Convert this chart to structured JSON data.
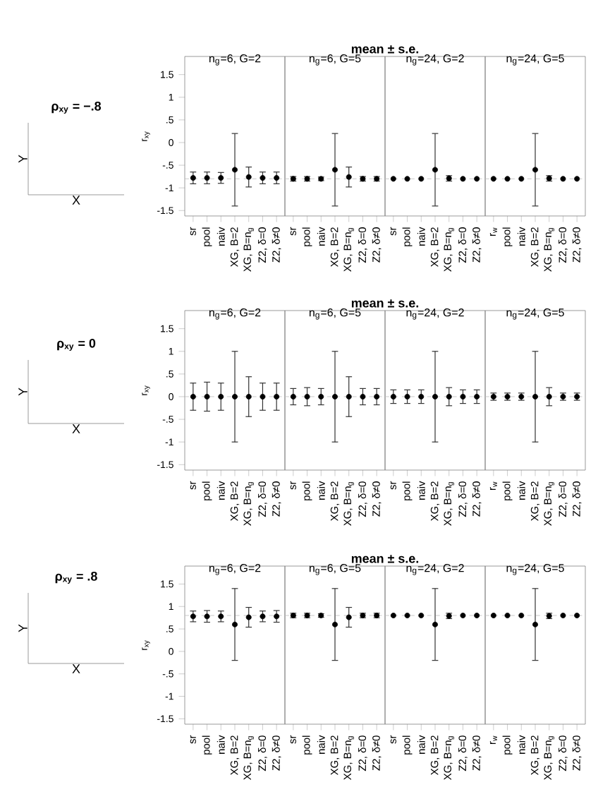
{
  "chart_data": [
    {
      "type": "other",
      "title": "ρ$_{xy}$ = −.8",
      "xlabel": "X",
      "ylabel": "Y"
    },
    {
      "type": "scatter",
      "subtitle": "n$_{g}$=6, G=2",
      "ylabel": "r$_{xy}$",
      "color": "#000000",
      "categories": [
        "sr",
        "pool",
        "naiv",
        "XG, B=2",
        "XG, B=n$_{g}$",
        "Z2, δ=0",
        "Z2, δ≠0"
      ],
      "values": [
        -0.78,
        -0.78,
        -0.78,
        -0.6,
        -0.76,
        -0.78,
        -0.78
      ],
      "errors": [
        0.13,
        0.13,
        0.12,
        0.8,
        0.22,
        0.13,
        0.13
      ],
      "ylim": [
        -1.62,
        1.9
      ],
      "yticks": [
        {
          "value": -1.5,
          "label": "-1.5"
        },
        {
          "value": -1,
          "label": "-1"
        },
        {
          "value": -0.5,
          "label": "-.5"
        },
        0,
        {
          "value": 0.5,
          "label": ".5"
        },
        1,
        1.5
      ],
      "ref_lines": [
        {
          "axis": "y",
          "value": -0.8,
          "color": "#bbbbbb",
          "line_style": "dashed"
        }
      ]
    },
    {
      "type": "scatter",
      "title": "mean ± s.e.",
      "subtitle": "n$_{g}$=6, G=5",
      "color": "#000000",
      "categories": [
        "sr",
        "pool",
        "naiv",
        "XG, B=2",
        "XG, B=n$_{g}$",
        "Z2, δ=0",
        "Z2, δ≠0"
      ],
      "values": [
        -0.8,
        -0.8,
        -0.8,
        -0.6,
        -0.76,
        -0.8,
        -0.8
      ],
      "errors": [
        0.05,
        0.05,
        0.04,
        0.8,
        0.22,
        0.05,
        0.05
      ],
      "ylim": [
        -1.62,
        1.9
      ],
      "tick_labels": "x",
      "ref_lines": [
        {
          "axis": "y",
          "value": -0.8,
          "color": "#bbbbbb",
          "line_style": "dashed"
        }
      ]
    },
    {
      "type": "scatter",
      "subtitle": "n$_{g}$=24, G=2",
      "color": "#000000",
      "categories": [
        "sr",
        "pool",
        "naiv",
        "XG, B=2",
        "XG, B=n$_{g}$",
        "Z2, δ=0",
        "Z2, δ≠0"
      ],
      "values": [
        -0.8,
        -0.8,
        -0.8,
        -0.6,
        -0.79,
        -0.8,
        -0.8
      ],
      "errors": [
        null,
        null,
        null,
        0.8,
        0.06,
        null,
        null
      ],
      "ylim": [
        -1.62,
        1.9
      ],
      "tick_labels": "x",
      "ref_lines": [
        {
          "axis": "y",
          "value": -0.8,
          "color": "#bbbbbb",
          "line_style": "dashed"
        }
      ]
    },
    {
      "type": "scatter",
      "subtitle": "n$_{g}$=24, G=5",
      "color": "#000000",
      "categories": [
        "r$_{w}$",
        "pool",
        "naiv",
        "XG, B=2",
        "XG, B=n$_{g}$",
        "Z2, δ=0",
        "Z2, δ≠0"
      ],
      "values": [
        -0.8,
        -0.8,
        -0.8,
        -0.6,
        -0.79,
        -0.8,
        -0.8
      ],
      "errors": [
        null,
        null,
        null,
        0.8,
        0.06,
        null,
        null
      ],
      "ylim": [
        -1.62,
        1.9
      ],
      "tick_labels": "x",
      "ref_lines": [
        {
          "axis": "y",
          "value": -0.8,
          "color": "#bbbbbb",
          "line_style": "dashed"
        }
      ]
    },
    {
      "type": "other",
      "title": "ρ$_{xy}$ = 0",
      "xlabel": "X",
      "ylabel": "Y"
    },
    {
      "type": "scatter",
      "subtitle": "n$_{g}$=6, G=2",
      "ylabel": "r$_{xy}$",
      "color": "#000000",
      "categories": [
        "sr",
        "pool",
        "naiv",
        "XG, B=2",
        "XG, B=n$_{g}$",
        "Z2, δ=0",
        "Z2, δ≠0"
      ],
      "values": [
        0,
        0,
        0,
        0,
        0,
        0,
        0
      ],
      "errors": [
        0.3,
        0.32,
        0.3,
        1,
        0.44,
        0.3,
        0.3
      ],
      "ylim": [
        -1.62,
        1.9
      ],
      "yticks": [
        {
          "value": -1.5,
          "label": "-1.5"
        },
        {
          "value": -1,
          "label": "-1"
        },
        {
          "value": -0.5,
          "label": "-.5"
        },
        0,
        {
          "value": 0.5,
          "label": ".5"
        },
        1,
        1.5
      ],
      "ref_lines": [
        {
          "axis": "y",
          "value": 0,
          "color": "#bbbbbb",
          "line_style": "dashed"
        }
      ]
    },
    {
      "type": "scatter",
      "title": "mean ± s.e.",
      "subtitle": "n$_{g}$=6, G=5",
      "color": "#000000",
      "categories": [
        "sr",
        "pool",
        "naiv",
        "XG, B=2",
        "XG, B=n$_{g}$",
        "Z2, δ=0",
        "Z2, δ≠0"
      ],
      "values": [
        0,
        0,
        0,
        0,
        0,
        0,
        0
      ],
      "errors": [
        0.18,
        0.2,
        0.18,
        1,
        0.44,
        0.18,
        0.18
      ],
      "ylim": [
        -1.62,
        1.9
      ],
      "tick_labels": "x",
      "ref_lines": [
        {
          "axis": "y",
          "value": 0,
          "color": "#bbbbbb",
          "line_style": "dashed"
        }
      ]
    },
    {
      "type": "scatter",
      "subtitle": "n$_{g}$=24, G=2",
      "color": "#000000",
      "categories": [
        "sr",
        "pool",
        "naiv",
        "XG, B=2",
        "XG, B=n$_{g}$",
        "Z2, δ=0",
        "Z2, δ≠0"
      ],
      "values": [
        0,
        0,
        0,
        0,
        0,
        0,
        0
      ],
      "errors": [
        0.15,
        0.15,
        0.15,
        1,
        0.2,
        0.15,
        0.15
      ],
      "ylim": [
        -1.62,
        1.9
      ],
      "tick_labels": "x",
      "ref_lines": [
        {
          "axis": "y",
          "value": 0,
          "color": "#bbbbbb",
          "line_style": "dashed"
        }
      ]
    },
    {
      "type": "scatter",
      "subtitle": "n$_{g}$=24, G=5",
      "color": "#000000",
      "categories": [
        "r$_{w}$",
        "pool",
        "naiv",
        "XG, B=2",
        "XG, B=n$_{g}$",
        "Z2, δ=0",
        "Z2, δ≠0"
      ],
      "values": [
        0,
        0,
        0,
        0,
        0,
        0,
        0
      ],
      "errors": [
        0.08,
        0.08,
        0.08,
        1,
        0.2,
        0.08,
        0.08
      ],
      "ylim": [
        -1.62,
        1.9
      ],
      "tick_labels": "x",
      "ref_lines": [
        {
          "axis": "y",
          "value": 0,
          "color": "#bbbbbb",
          "line_style": "dashed"
        }
      ]
    },
    {
      "type": "other",
      "title": "ρ$_{xy}$ = .8",
      "xlabel": "X",
      "ylabel": "Y"
    },
    {
      "type": "scatter",
      "subtitle": "n$_{g}$=6, G=2",
      "ylabel": "r$_{xy}$",
      "color": "#000000",
      "categories": [
        "sr",
        "pool",
        "naiv",
        "XG, B=2",
        "XG, B=n$_{g}$",
        "Z2, δ=0",
        "Z2, δ≠0"
      ],
      "values": [
        0.78,
        0.78,
        0.78,
        0.6,
        0.76,
        0.78,
        0.78
      ],
      "errors": [
        0.12,
        0.13,
        0.12,
        0.8,
        0.22,
        0.12,
        0.13
      ],
      "ylim": [
        -1.62,
        1.9
      ],
      "yticks": [
        {
          "value": -1.5,
          "label": "-1.5"
        },
        {
          "value": -1,
          "label": "-1"
        },
        {
          "value": -0.5,
          "label": "-.5"
        },
        0,
        {
          "value": 0.5,
          "label": ".5"
        },
        1,
        1.5
      ],
      "ref_lines": [
        {
          "axis": "y",
          "value": 0.8,
          "color": "#bbbbbb",
          "line_style": "dashed"
        }
      ]
    },
    {
      "type": "scatter",
      "title": "mean ± s.e.",
      "subtitle": "n$_{g}$=6, G=5",
      "color": "#000000",
      "categories": [
        "sr",
        "pool",
        "naiv",
        "XG, B=2",
        "XG, B=n$_{g}$",
        "Z2, δ=0",
        "Z2, δ≠0"
      ],
      "values": [
        0.8,
        0.8,
        0.8,
        0.6,
        0.76,
        0.8,
        0.8
      ],
      "errors": [
        0.05,
        0.05,
        0.04,
        0.8,
        0.22,
        0.05,
        0.05
      ],
      "ylim": [
        -1.62,
        1.9
      ],
      "tick_labels": "x",
      "ref_lines": [
        {
          "axis": "y",
          "value": 0.8,
          "color": "#bbbbbb",
          "line_style": "dashed"
        }
      ]
    },
    {
      "type": "scatter",
      "subtitle": "n$_{g}$=24, G=2",
      "color": "#000000",
      "categories": [
        "sr",
        "pool",
        "naiv",
        "XG, B=2",
        "XG, B=n$_{g}$",
        "Z2, δ=0",
        "Z2, δ≠0"
      ],
      "values": [
        0.8,
        0.8,
        0.8,
        0.6,
        0.79,
        0.8,
        0.8
      ],
      "errors": [
        null,
        null,
        null,
        0.8,
        0.06,
        null,
        null
      ],
      "ylim": [
        -1.62,
        1.9
      ],
      "tick_labels": "x",
      "ref_lines": [
        {
          "axis": "y",
          "value": 0.8,
          "color": "#bbbbbb",
          "line_style": "dashed"
        }
      ]
    },
    {
      "type": "scatter",
      "subtitle": "n$_{g}$=24, G=5",
      "color": "#000000",
      "categories": [
        "r$_{w}$",
        "pool",
        "naiv",
        "XG, B=2",
        "XG, B=n$_{g}$",
        "Z2, δ=0",
        "Z2, δ≠0"
      ],
      "values": [
        0.8,
        0.8,
        0.8,
        0.6,
        0.79,
        0.8,
        0.8
      ],
      "errors": [
        null,
        null,
        null,
        0.8,
        0.06,
        null,
        null
      ],
      "ylim": [
        -1.62,
        1.9
      ],
      "tick_labels": "x",
      "ref_lines": [
        {
          "axis": "y",
          "value": 0.8,
          "color": "#bbbbbb",
          "line_style": "dashed"
        }
      ]
    }
  ]
}
